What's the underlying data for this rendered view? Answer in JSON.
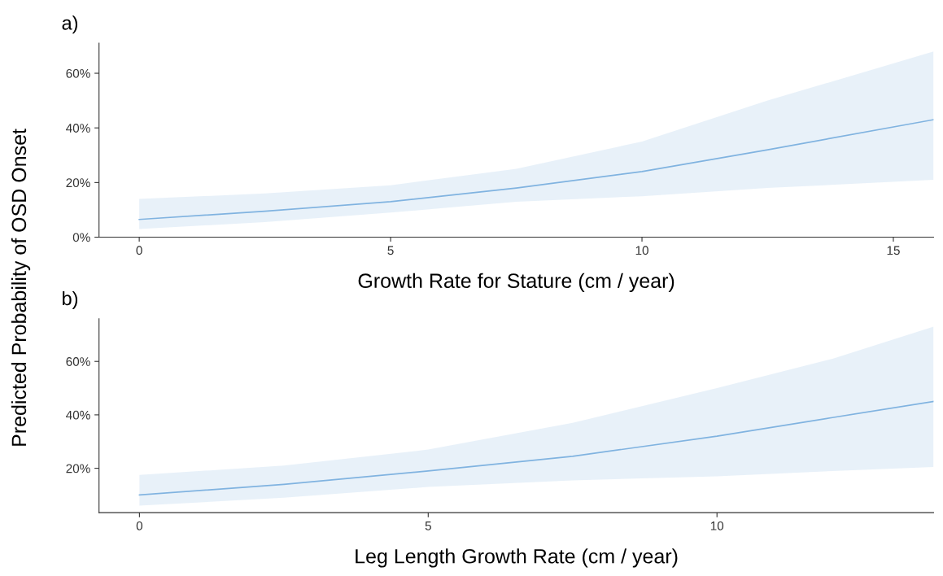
{
  "chart_data": [
    {
      "type": "line",
      "title": "a)",
      "xlabel": "Growth Rate for Stature (cm / year)",
      "ylabel": "Predicted Probability of OSD Onset",
      "series": [
        {
          "color": "#80b3e0",
          "x": [
            0,
            2.5,
            5,
            7.5,
            10,
            12.5,
            15.8
          ],
          "values": [
            6.5,
            9.5,
            13,
            18,
            24,
            32,
            43
          ],
          "lower": [
            3,
            5.5,
            9,
            13,
            15,
            18,
            21
          ],
          "upper": [
            14,
            16,
            19,
            25,
            35,
            50,
            68
          ]
        }
      ],
      "xlim": [
        -0.8,
        15.8
      ],
      "xticks": [
        0,
        5,
        10,
        15
      ],
      "ylim": [
        0,
        71
      ],
      "yticks": [
        {
          "value": 0,
          "label": "0%"
        },
        {
          "value": 20,
          "label": "20%"
        },
        {
          "value": 40,
          "label": "40%"
        },
        {
          "value": 60,
          "label": "60%"
        }
      ],
      "grid": false,
      "legend": false
    },
    {
      "type": "line",
      "title": "b)",
      "xlabel": "Leg Length Growth Rate (cm / year)",
      "series": [
        {
          "color": "#80b3e0",
          "x": [
            0,
            2.5,
            5,
            7.5,
            10,
            12,
            13.75
          ],
          "values": [
            10,
            14,
            19,
            24.5,
            32,
            39,
            45
          ],
          "lower": [
            6,
            9,
            13,
            15.5,
            17,
            19,
            20.5
          ],
          "upper": [
            17.5,
            21,
            27,
            37,
            50,
            61,
            73
          ]
        }
      ],
      "xlim": [
        -0.7,
        13.75
      ],
      "xticks": [
        0,
        5,
        10
      ],
      "ylim": [
        3.4,
        76
      ],
      "yticks": [
        {
          "value": 20,
          "label": "20%"
        },
        {
          "value": 40,
          "label": "40%"
        },
        {
          "value": 60,
          "label": "60%"
        }
      ],
      "grid": false,
      "legend": false
    }
  ]
}
